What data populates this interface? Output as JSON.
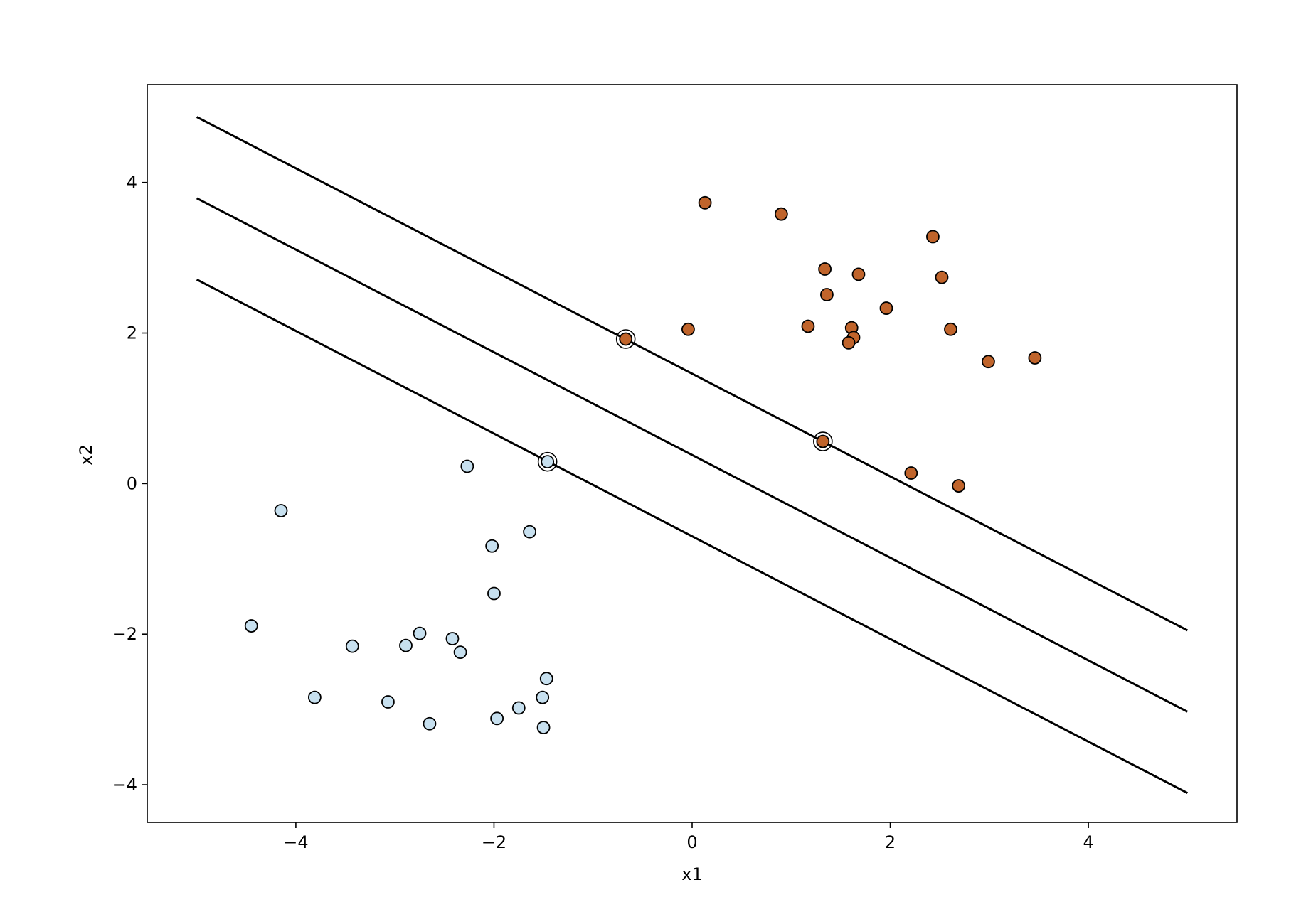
{
  "chart_data": {
    "type": "scatter",
    "title": "",
    "xlabel": "x1",
    "ylabel": "x2",
    "xlim": [
      -5.5,
      5.5
    ],
    "ylim": [
      -4.5,
      5.3
    ],
    "grid": false,
    "x_ticks": [
      -4,
      -2,
      0,
      2,
      4
    ],
    "y_ticks": [
      -4,
      -2,
      0,
      2,
      4
    ],
    "x_tick_labels": [
      "−4",
      "−2",
      "0",
      "2",
      "4"
    ],
    "y_tick_labels": [
      "−4",
      "−2",
      "0",
      "2",
      "4"
    ],
    "colors": {
      "class_0": "#c7e0ef",
      "class_1": "#c0642b",
      "marker_edge": "#000000",
      "line": "#000000"
    },
    "series": [
      {
        "class": "class_0",
        "points": [
          [
            -2.27,
            0.23
          ],
          [
            -1.46,
            0.29
          ],
          [
            -4.15,
            -0.36
          ],
          [
            -1.64,
            -0.64
          ],
          [
            -2.02,
            -0.83
          ],
          [
            -2.0,
            -1.46
          ],
          [
            -4.45,
            -1.89
          ],
          [
            -3.43,
            -2.16
          ],
          [
            -2.75,
            -1.99
          ],
          [
            -2.89,
            -2.15
          ],
          [
            -2.42,
            -2.06
          ],
          [
            -2.34,
            -2.24
          ],
          [
            -3.81,
            -2.84
          ],
          [
            -3.07,
            -2.9
          ],
          [
            -2.65,
            -3.19
          ],
          [
            -1.97,
            -3.12
          ],
          [
            -1.75,
            -2.98
          ],
          [
            -1.51,
            -2.84
          ],
          [
            -1.47,
            -2.59
          ],
          [
            -1.5,
            -3.24
          ]
        ]
      },
      {
        "class": "class_1",
        "points": [
          [
            0.13,
            3.73
          ],
          [
            0.9,
            3.58
          ],
          [
            2.43,
            3.28
          ],
          [
            1.34,
            2.85
          ],
          [
            1.68,
            2.78
          ],
          [
            2.52,
            2.74
          ],
          [
            1.36,
            2.51
          ],
          [
            1.96,
            2.33
          ],
          [
            -0.04,
            2.05
          ],
          [
            1.17,
            2.09
          ],
          [
            1.61,
            2.07
          ],
          [
            1.63,
            1.94
          ],
          [
            1.58,
            1.87
          ],
          [
            2.61,
            2.05
          ],
          [
            -0.67,
            1.92
          ],
          [
            2.99,
            1.62
          ],
          [
            3.46,
            1.67
          ],
          [
            1.32,
            0.56
          ],
          [
            2.21,
            0.14
          ],
          [
            2.69,
            -0.03
          ]
        ]
      }
    ],
    "support_vectors": [
      [
        -0.67,
        1.92
      ],
      [
        1.32,
        0.56
      ],
      [
        -1.46,
        0.29
      ]
    ],
    "decision_lines": [
      {
        "x": [
          -5,
          5
        ],
        "y": [
          4.87,
          -1.95
        ]
      },
      {
        "x": [
          -5,
          5
        ],
        "y": [
          3.79,
          -3.03
        ]
      },
      {
        "x": [
          -5,
          5
        ],
        "y": [
          2.71,
          -4.11
        ]
      }
    ]
  }
}
